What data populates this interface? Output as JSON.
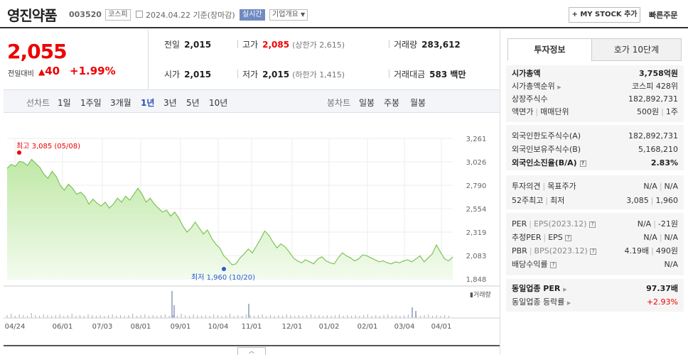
{
  "header": {
    "company_name": "영진약품",
    "code": "003520",
    "market_badge": "코스피",
    "date_text": "2024.04.22  기준(장마감)",
    "realtime_badge": "실시간",
    "overview_badge": "기업개요",
    "mystock_label": "+ MY STOCK 추가",
    "quick_order_label": "빠른주문"
  },
  "price": {
    "current": "2,055",
    "change_label": "전일대비",
    "change_value": "40",
    "change_pct": "+1.99%"
  },
  "stats": {
    "prev_label": "전일",
    "prev": "2,015",
    "high_label": "고가",
    "high": "2,085",
    "upper_limit": "(상한가 2,615)",
    "volume_label": "거래량",
    "volume": "283,612",
    "open_label": "시가",
    "open": "2,015",
    "low_label": "저가",
    "low": "2,015",
    "lower_limit": "(하한가 1,415)",
    "amount_label": "거래대금",
    "amount": "583 백만"
  },
  "periods": {
    "line_label": "선차트",
    "line_items": [
      "1일",
      "1주일",
      "3개월",
      "1년",
      "3년",
      "5년",
      "10년"
    ],
    "active": "1년",
    "candle_label": "봉차트",
    "candle_items": [
      "일봉",
      "주봉",
      "월봉"
    ]
  },
  "chart_data": {
    "type": "area",
    "y_ticks": [
      "3,261",
      "3,026",
      "2,790",
      "2,554",
      "2,319",
      "2,083",
      "1,848"
    ],
    "ylim": [
      1848,
      3261
    ],
    "x_ticks": [
      "04/24",
      "06/01",
      "07/03",
      "08/01",
      "09/01",
      "10/04",
      "11/01",
      "12/01",
      "01/02",
      "02/01",
      "03/04",
      "04/01"
    ],
    "high_annotation": "최고 3,085 (05/08)",
    "low_annotation": "최저 1,960 (10/20)",
    "high_point": {
      "x": 0.034,
      "y": 3085
    },
    "low_point": {
      "x": 0.49,
      "y": 1960
    },
    "volume_legend": "거래량",
    "series": [
      {
        "values": [
          2960,
          3000,
          2980,
          3030,
          3020,
          2990,
          3050,
          3010,
          2970,
          2900,
          2860,
          2930,
          2880,
          2790,
          2740,
          2800,
          2760,
          2700,
          2720,
          2680,
          2600,
          2650,
          2610,
          2580,
          2620,
          2560,
          2600,
          2660,
          2620,
          2680,
          2640,
          2700,
          2760,
          2700,
          2620,
          2660,
          2600,
          2560,
          2520,
          2540,
          2480,
          2520,
          2460,
          2380,
          2320,
          2360,
          2420,
          2360,
          2300,
          2340,
          2260,
          2200,
          2160,
          2080,
          2040,
          1990,
          2000,
          2060,
          2100,
          2150,
          2110,
          2180,
          2250,
          2330,
          2290,
          2220,
          2160,
          2200,
          2170,
          2120,
          2060,
          2030,
          2010,
          2040,
          2020,
          2000,
          2050,
          2070,
          2030,
          2010,
          2000,
          2060,
          2110,
          2080,
          2060,
          2030,
          2050,
          2090,
          2080,
          2060,
          2040,
          2020,
          2030,
          2010,
          2000,
          2020,
          2010,
          2030,
          2040,
          2020,
          2050,
          2080,
          2020,
          2060,
          2100,
          2190,
          2120,
          2050,
          2030,
          2070
        ]
      }
    ]
  },
  "tabs": {
    "invest": "투자정보",
    "orderbook": "호가 10단계"
  },
  "info": {
    "mcap_label": "시가총액",
    "mcap": "3,758억원",
    "mcap_rank_label": "시가총액순위",
    "mcap_rank": "코스피 428위",
    "shares_label": "상장주식수",
    "shares": "182,892,731",
    "par_label": "액면가",
    "unit_label": "매매단위",
    "par": "500원",
    "unit": "1주",
    "foreign_limit_label": "외국인한도주식수(A)",
    "foreign_limit": "182,892,731",
    "foreign_hold_label": "외국인보유주식수(B)",
    "foreign_hold": "5,168,210",
    "foreign_ratio_label": "외국인소진율(B/A)",
    "foreign_ratio": "2.83%",
    "opinion_label": "투자의견",
    "target_label": "목표주가",
    "opinion": "N/A",
    "target": "N/A",
    "w52_high_label": "52주최고",
    "w52_low_label": "최저",
    "w52_high": "3,085",
    "w52_low": "1,960",
    "per_label": "PER",
    "eps_label": "EPS(2023.12)",
    "per": "N/A",
    "eps": "-21원",
    "est_per_label": "추정PER",
    "est_eps_label": "EPS",
    "est_per": "N/A",
    "est_eps": "N/A",
    "pbr_label": "PBR",
    "bps_label": "BPS(2023.12)",
    "pbr": "4.19배",
    "bps": "490원",
    "div_label": "배당수익률",
    "div": "N/A",
    "sector_per_label": "동일업종 PER",
    "sector_per": "97.37배",
    "sector_chg_label": "동일업종 등락률",
    "sector_chg": "+2.93%"
  }
}
